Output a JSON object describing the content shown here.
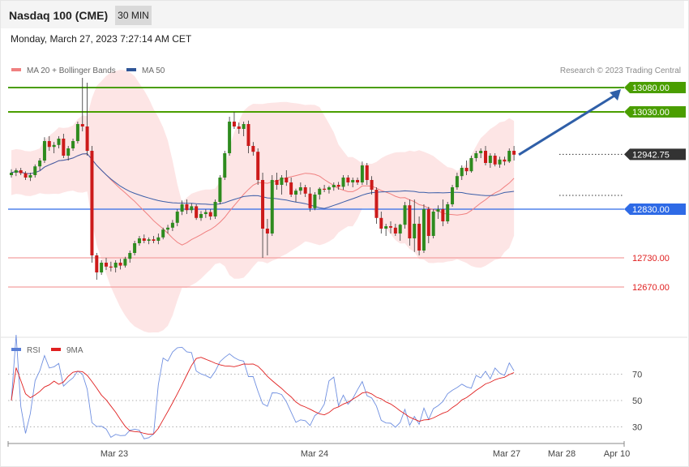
{
  "header": {
    "instrument": "Nasdaq 100 (CME)",
    "timeframe": "30 MIN",
    "datetime": "Monday, March 27, 2023 7:27:14 AM CET"
  },
  "chart_data": [
    {
      "type": "candlestick",
      "legend": [
        {
          "name": "MA 20 + Bollinger Bands",
          "color": "#f08080"
        },
        {
          "name": "MA 50",
          "color": "#2f5597"
        }
      ],
      "copyright": "Research © 2023 Trading Central",
      "levels": [
        {
          "value": 13080.0,
          "label": "13080.00",
          "kind": "resistance",
          "color": "#4a9e00"
        },
        {
          "value": 13030.0,
          "label": "13030.00",
          "kind": "resistance",
          "color": "#4a9e00"
        },
        {
          "value": 12942.75,
          "label": "12942.75",
          "kind": "last-price",
          "color": "#333333"
        },
        {
          "value": 12830.0,
          "label": "12830.00",
          "kind": "pivot",
          "color": "#2e6ae6"
        },
        {
          "value": 12730.0,
          "label": "12730.00",
          "kind": "support",
          "color": "#e02020"
        },
        {
          "value": 12670.0,
          "label": "12670.00",
          "kind": "support",
          "color": "#e02020"
        }
      ],
      "x_labels": [
        "Mar 23",
        "Mar 24",
        "Mar 27",
        "Mar 28",
        "Apr 10"
      ],
      "ohlc": [
        [
          12900,
          12912,
          12895,
          12905
        ],
        [
          12905,
          12914,
          12898,
          12910
        ],
        [
          12910,
          12915,
          12900,
          12904
        ],
        [
          12904,
          12908,
          12890,
          12895
        ],
        [
          12895,
          12905,
          12888,
          12900
        ],
        [
          12900,
          12922,
          12895,
          12918
        ],
        [
          12918,
          12935,
          12910,
          12930
        ],
        [
          12930,
          12978,
          12925,
          12970
        ],
        [
          12970,
          12980,
          12950,
          12958
        ],
        [
          12958,
          12968,
          12945,
          12962
        ],
        [
          12962,
          12980,
          12955,
          12975
        ],
        [
          12975,
          12985,
          12935,
          12940
        ],
        [
          12940,
          12960,
          12930,
          12955
        ],
        [
          12955,
          12975,
          12950,
          12970
        ],
        [
          12970,
          13010,
          12965,
          13005
        ],
        [
          13005,
          13100,
          12990,
          13000
        ],
        [
          13000,
          13090,
          12940,
          12950
        ],
        [
          12950,
          12960,
          12720,
          12735
        ],
        [
          12735,
          12740,
          12685,
          12700
        ],
        [
          12700,
          12725,
          12695,
          12720
        ],
        [
          12720,
          12730,
          12705,
          12712
        ],
        [
          12712,
          12722,
          12702,
          12710
        ],
        [
          12710,
          12725,
          12700,
          12720
        ],
        [
          12720,
          12728,
          12706,
          12714
        ],
        [
          12714,
          12732,
          12710,
          12728
        ],
        [
          12728,
          12745,
          12720,
          12740
        ],
        [
          12740,
          12765,
          12735,
          12760
        ],
        [
          12760,
          12775,
          12755,
          12770
        ],
        [
          12770,
          12778,
          12760,
          12765
        ],
        [
          12765,
          12772,
          12758,
          12768
        ],
        [
          12768,
          12775,
          12760,
          12765
        ],
        [
          12765,
          12780,
          12758,
          12772
        ],
        [
          12772,
          12792,
          12768,
          12788
        ],
        [
          12788,
          12798,
          12780,
          12792
        ],
        [
          12792,
          12808,
          12785,
          12802
        ],
        [
          12802,
          12830,
          12795,
          12825
        ],
        [
          12825,
          12848,
          12818,
          12840
        ],
        [
          12840,
          12850,
          12820,
          12828
        ],
        [
          12828,
          12842,
          12822,
          12836
        ],
        [
          12836,
          12840,
          12808,
          12812
        ],
        [
          12812,
          12826,
          12806,
          12820
        ],
        [
          12820,
          12830,
          12812,
          12824
        ],
        [
          12824,
          12830,
          12808,
          12815
        ],
        [
          12815,
          12850,
          12810,
          12845
        ],
        [
          12845,
          12900,
          12840,
          12895
        ],
        [
          12895,
          12950,
          12890,
          12945
        ],
        [
          12945,
          13020,
          12940,
          13010
        ],
        [
          13010,
          13030,
          12995,
          13000
        ],
        [
          13000,
          13008,
          12985,
          12995
        ],
        [
          12995,
          13010,
          12980,
          13005
        ],
        [
          13005,
          13012,
          12945,
          12960
        ],
        [
          12960,
          12968,
          12940,
          12948
        ],
        [
          12948,
          12955,
          12880,
          12890
        ],
        [
          12890,
          12905,
          12730,
          12790
        ],
        [
          12790,
          12810,
          12735,
          12780
        ],
        [
          12780,
          12900,
          12775,
          12890
        ],
        [
          12890,
          12905,
          12870,
          12880
        ],
        [
          12880,
          12900,
          12860,
          12895
        ],
        [
          12895,
          12910,
          12878,
          12885
        ],
        [
          12885,
          12895,
          12855,
          12860
        ],
        [
          12860,
          12872,
          12845,
          12868
        ],
        [
          12868,
          12885,
          12860,
          12875
        ],
        [
          12875,
          12880,
          12855,
          12862
        ],
        [
          12862,
          12875,
          12825,
          12832
        ],
        [
          12832,
          12865,
          12828,
          12860
        ],
        [
          12860,
          12875,
          12850,
          12872
        ],
        [
          12872,
          12880,
          12865,
          12870
        ],
        [
          12870,
          12878,
          12862,
          12875
        ],
        [
          12875,
          12885,
          12868,
          12880
        ],
        [
          12880,
          12886,
          12870,
          12876
        ],
        [
          12876,
          12900,
          12870,
          12895
        ],
        [
          12895,
          12900,
          12878,
          12885
        ],
        [
          12885,
          12895,
          12875,
          12890
        ],
        [
          12890,
          12895,
          12880,
          12885
        ],
        [
          12885,
          12928,
          12880,
          12920
        ],
        [
          12920,
          12925,
          12880,
          12890
        ],
        [
          12890,
          12898,
          12860,
          12870
        ],
        [
          12870,
          12875,
          12800,
          12812
        ],
        [
          12812,
          12825,
          12780,
          12790
        ],
        [
          12790,
          12800,
          12775,
          12795
        ],
        [
          12795,
          12805,
          12780,
          12792
        ],
        [
          12792,
          12800,
          12775,
          12780
        ],
        [
          12780,
          12800,
          12765,
          12798
        ],
        [
          12798,
          12845,
          12790,
          12838
        ],
        [
          12838,
          12850,
          12755,
          12770
        ],
        [
          12770,
          12850,
          12742,
          12800
        ],
        [
          12800,
          12815,
          12735,
          12745
        ],
        [
          12745,
          12840,
          12740,
          12830
        ],
        [
          12830,
          12835,
          12760,
          12775
        ],
        [
          12775,
          12830,
          12770,
          12825
        ],
        [
          12825,
          12838,
          12810,
          12830
        ],
        [
          12830,
          12850,
          12795,
          12805
        ],
        [
          12805,
          12845,
          12800,
          12840
        ],
        [
          12840,
          12880,
          12835,
          12875
        ],
        [
          12875,
          12905,
          12870,
          12898
        ],
        [
          12898,
          12920,
          12890,
          12915
        ],
        [
          12915,
          12930,
          12900,
          12908
        ],
        [
          12908,
          12940,
          12905,
          12935
        ],
        [
          12935,
          12950,
          12928,
          12945
        ],
        [
          12945,
          12955,
          12935,
          12950
        ],
        [
          12950,
          12960,
          12920,
          12925
        ],
        [
          12925,
          12945,
          12915,
          12940
        ],
        [
          12940,
          12945,
          12918,
          12922
        ],
        [
          12922,
          12938,
          12915,
          12932
        ],
        [
          12932,
          12938,
          12920,
          12928
        ],
        [
          12928,
          12955,
          12925,
          12950
        ],
        [
          12950,
          12960,
          12930,
          12942
        ]
      ],
      "forecast_target": 13080.0,
      "rsi": {
        "legend": [
          {
            "name": "RSI",
            "color": "#5a7fd6"
          },
          {
            "name": "9MA",
            "color": "#e02020"
          }
        ],
        "levels": [
          70,
          50,
          30
        ],
        "level_labels": [
          "70",
          "50",
          "30"
        ]
      }
    }
  ]
}
